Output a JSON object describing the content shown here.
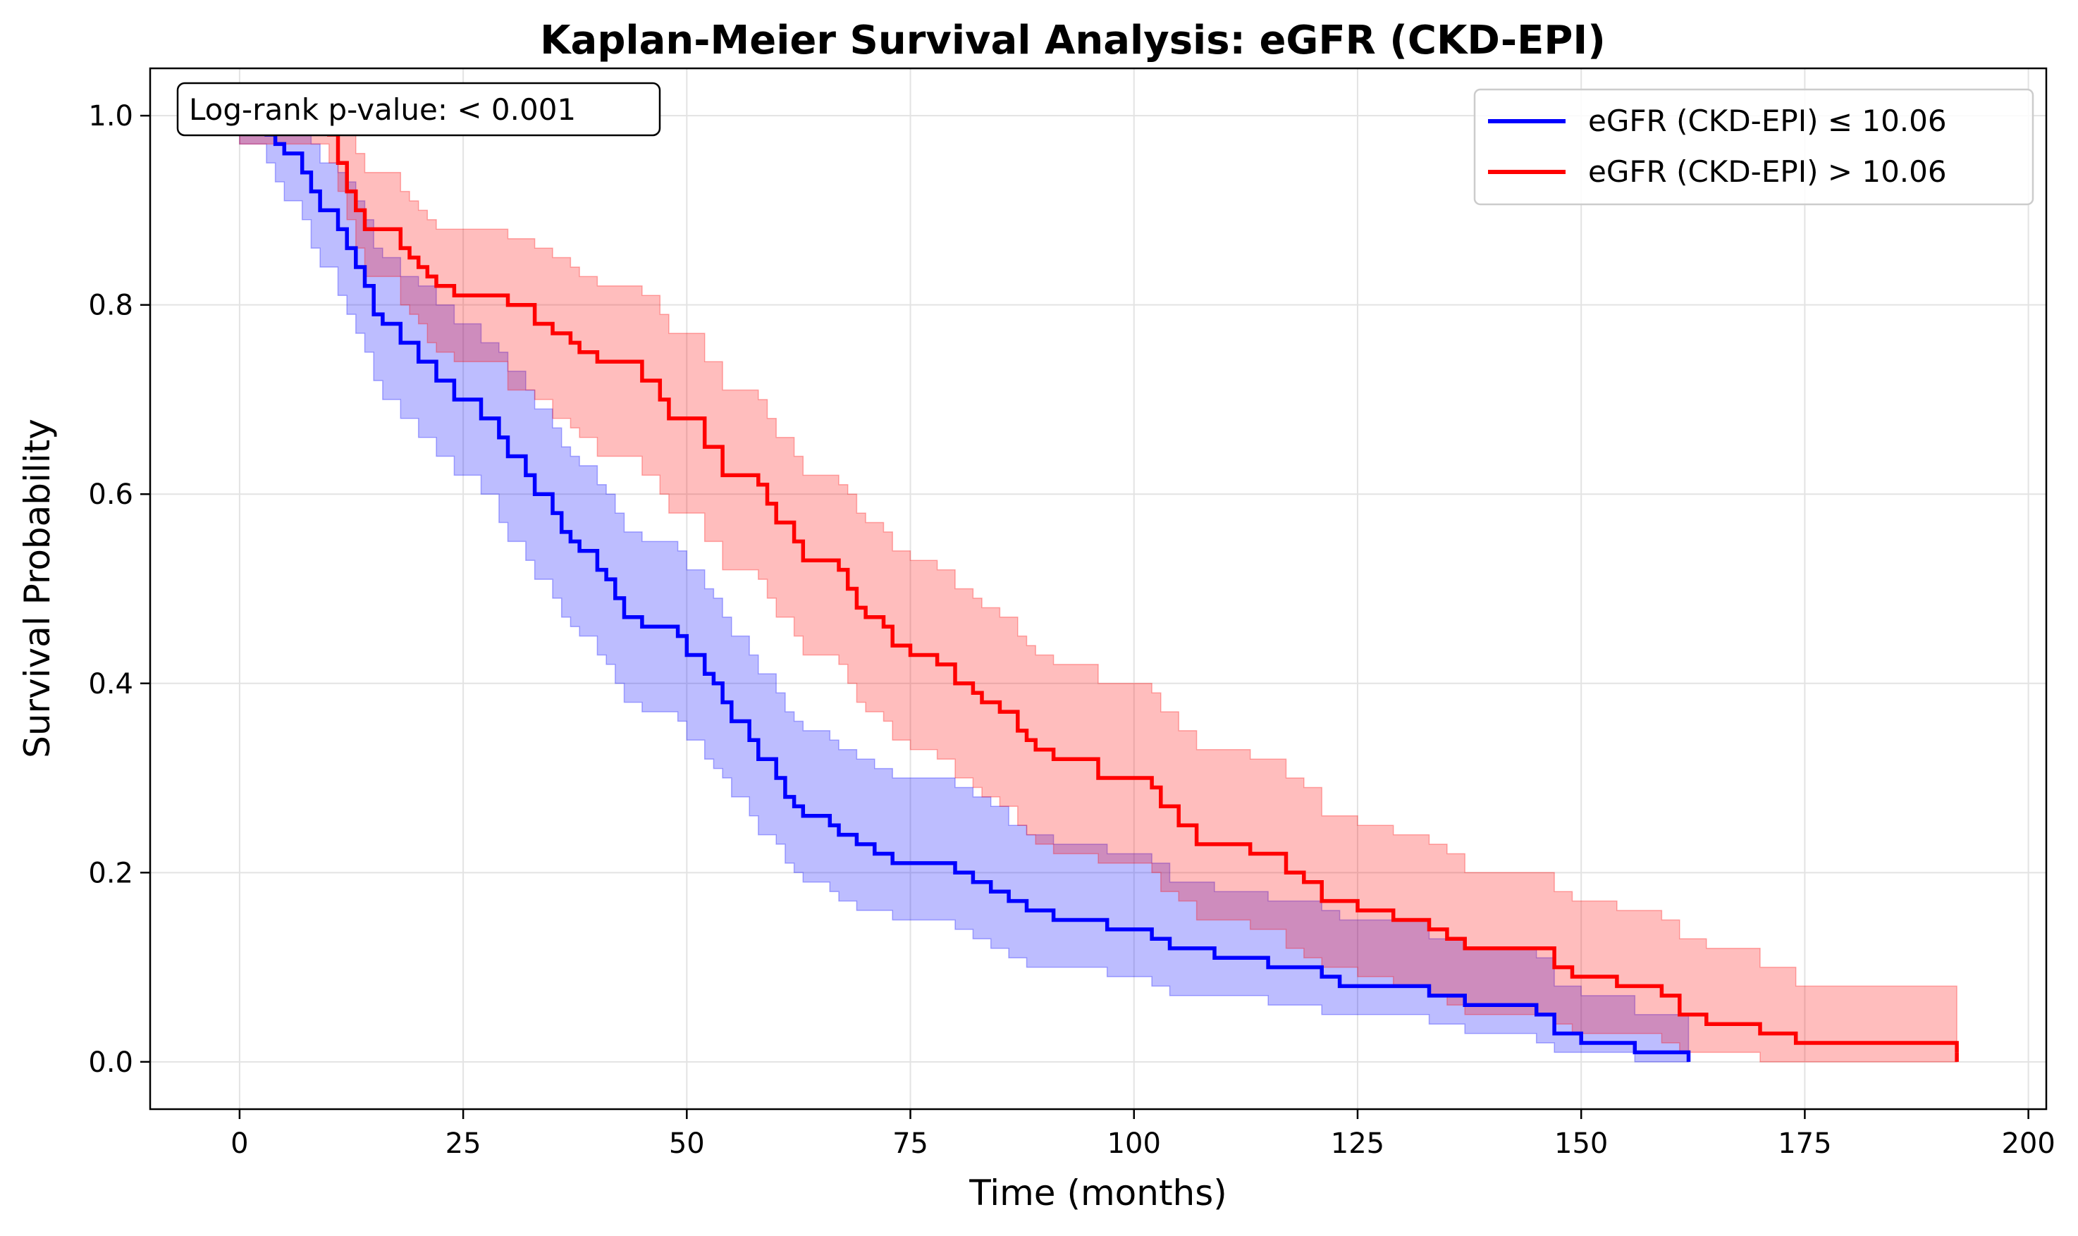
{
  "chart_data": {
    "type": "line",
    "subtype": "kaplan-meier step plot with confidence bands",
    "title": "Kaplan-Meier Survival Analysis: eGFR (CKD-EPI)",
    "xlabel": "Time (months)",
    "ylabel": "Survival Probability",
    "xlim": [
      -10,
      202
    ],
    "ylim": [
      -0.05,
      1.05
    ],
    "xticks": [
      0,
      25,
      50,
      75,
      100,
      125,
      150,
      175,
      200
    ],
    "yticks": [
      "0.0",
      "0.2",
      "0.4",
      "0.6",
      "0.8",
      "1.0"
    ],
    "grid": true,
    "legend_position": "top-right",
    "annotation": "Log-rank p-value: < 0.001",
    "series": [
      {
        "name": "eGFR (CKD-EPI) ≤ 10.06",
        "color": "#0000ff",
        "band_color": "#0000ff",
        "x": [
          0,
          3,
          4,
          5,
          7,
          8,
          9,
          11,
          12,
          13,
          14,
          15,
          16,
          18,
          20,
          22,
          24,
          27,
          29,
          30,
          32,
          33,
          35,
          36,
          37,
          38,
          40,
          41,
          42,
          43,
          45,
          49,
          50,
          52,
          53,
          54,
          55,
          57,
          58,
          60,
          61,
          62,
          63,
          66,
          67,
          69,
          71,
          73,
          80,
          82,
          84,
          86,
          88,
          91,
          97,
          102,
          104,
          109,
          115,
          121,
          123,
          133,
          137,
          145,
          147,
          150,
          156,
          162
        ],
        "y": [
          1.0,
          0.98,
          0.97,
          0.96,
          0.94,
          0.92,
          0.9,
          0.88,
          0.86,
          0.84,
          0.82,
          0.79,
          0.78,
          0.76,
          0.74,
          0.72,
          0.7,
          0.68,
          0.66,
          0.64,
          0.62,
          0.6,
          0.58,
          0.56,
          0.55,
          0.54,
          0.52,
          0.51,
          0.49,
          0.47,
          0.46,
          0.45,
          0.43,
          0.41,
          0.4,
          0.38,
          0.36,
          0.34,
          0.32,
          0.3,
          0.28,
          0.27,
          0.26,
          0.25,
          0.24,
          0.23,
          0.22,
          0.21,
          0.2,
          0.19,
          0.18,
          0.17,
          0.16,
          0.15,
          0.14,
          0.13,
          0.12,
          0.11,
          0.1,
          0.09,
          0.08,
          0.07,
          0.06,
          0.05,
          0.03,
          0.02,
          0.01,
          0.0
        ],
        "lower": [
          0.97,
          0.95,
          0.93,
          0.91,
          0.89,
          0.86,
          0.84,
          0.81,
          0.79,
          0.77,
          0.75,
          0.72,
          0.7,
          0.68,
          0.66,
          0.64,
          0.62,
          0.6,
          0.57,
          0.55,
          0.53,
          0.51,
          0.49,
          0.47,
          0.46,
          0.45,
          0.43,
          0.42,
          0.4,
          0.38,
          0.37,
          0.36,
          0.34,
          0.32,
          0.31,
          0.3,
          0.28,
          0.26,
          0.24,
          0.23,
          0.21,
          0.2,
          0.19,
          0.18,
          0.17,
          0.16,
          0.16,
          0.15,
          0.14,
          0.13,
          0.12,
          0.11,
          0.1,
          0.1,
          0.09,
          0.08,
          0.07,
          0.07,
          0.06,
          0.05,
          0.05,
          0.04,
          0.03,
          0.02,
          0.01,
          0.01,
          0.0,
          0.0
        ],
        "upper": [
          1.0,
          1.0,
          1.0,
          0.99,
          0.98,
          0.97,
          0.95,
          0.94,
          0.93,
          0.91,
          0.89,
          0.86,
          0.85,
          0.83,
          0.82,
          0.8,
          0.78,
          0.76,
          0.75,
          0.73,
          0.71,
          0.69,
          0.67,
          0.65,
          0.64,
          0.63,
          0.61,
          0.6,
          0.58,
          0.56,
          0.55,
          0.54,
          0.52,
          0.5,
          0.49,
          0.47,
          0.45,
          0.43,
          0.41,
          0.39,
          0.37,
          0.36,
          0.35,
          0.34,
          0.33,
          0.32,
          0.31,
          0.3,
          0.29,
          0.28,
          0.27,
          0.25,
          0.24,
          0.23,
          0.22,
          0.21,
          0.19,
          0.18,
          0.17,
          0.16,
          0.15,
          0.13,
          0.12,
          0.11,
          0.08,
          0.07,
          0.05,
          0.04
        ]
      },
      {
        "name": "eGFR (CKD-EPI) > 10.06",
        "color": "#ff0000",
        "band_color": "#ff0000",
        "x": [
          0,
          10,
          11,
          12,
          13,
          14,
          18,
          19,
          20,
          21,
          22,
          24,
          30,
          33,
          35,
          37,
          38,
          40,
          45,
          47,
          48,
          52,
          54,
          58,
          59,
          60,
          62,
          63,
          67,
          68,
          69,
          70,
          72,
          73,
          75,
          78,
          80,
          82,
          83,
          85,
          87,
          88,
          89,
          91,
          96,
          102,
          103,
          105,
          107,
          113,
          117,
          119,
          121,
          125,
          129,
          133,
          135,
          137,
          147,
          149,
          154,
          159,
          161,
          164,
          170,
          174,
          192
        ],
        "y": [
          1.0,
          0.98,
          0.95,
          0.92,
          0.9,
          0.88,
          0.86,
          0.85,
          0.84,
          0.83,
          0.82,
          0.81,
          0.8,
          0.78,
          0.77,
          0.76,
          0.75,
          0.74,
          0.72,
          0.7,
          0.68,
          0.65,
          0.62,
          0.61,
          0.59,
          0.57,
          0.55,
          0.53,
          0.52,
          0.5,
          0.48,
          0.47,
          0.46,
          0.44,
          0.43,
          0.42,
          0.4,
          0.39,
          0.38,
          0.37,
          0.35,
          0.34,
          0.33,
          0.32,
          0.3,
          0.29,
          0.27,
          0.25,
          0.23,
          0.22,
          0.2,
          0.19,
          0.17,
          0.16,
          0.15,
          0.14,
          0.13,
          0.12,
          0.1,
          0.09,
          0.08,
          0.07,
          0.05,
          0.04,
          0.03,
          0.02,
          0.01
        ],
        "lower": [
          0.97,
          0.95,
          0.92,
          0.89,
          0.86,
          0.83,
          0.8,
          0.79,
          0.78,
          0.76,
          0.75,
          0.74,
          0.71,
          0.7,
          0.68,
          0.67,
          0.66,
          0.64,
          0.62,
          0.6,
          0.58,
          0.55,
          0.52,
          0.51,
          0.49,
          0.47,
          0.45,
          0.43,
          0.42,
          0.4,
          0.38,
          0.37,
          0.36,
          0.34,
          0.33,
          0.32,
          0.3,
          0.29,
          0.28,
          0.27,
          0.25,
          0.24,
          0.23,
          0.22,
          0.21,
          0.2,
          0.18,
          0.17,
          0.15,
          0.14,
          0.12,
          0.11,
          0.1,
          0.09,
          0.08,
          0.07,
          0.06,
          0.05,
          0.04,
          0.03,
          0.03,
          0.02,
          0.01,
          0.01,
          0.0,
          0.0,
          0.0
        ],
        "upper": [
          1.0,
          1.0,
          1.0,
          0.98,
          0.96,
          0.94,
          0.92,
          0.91,
          0.9,
          0.89,
          0.88,
          0.88,
          0.87,
          0.86,
          0.85,
          0.84,
          0.83,
          0.82,
          0.81,
          0.79,
          0.77,
          0.74,
          0.71,
          0.7,
          0.68,
          0.66,
          0.64,
          0.62,
          0.61,
          0.6,
          0.58,
          0.57,
          0.56,
          0.54,
          0.53,
          0.52,
          0.5,
          0.49,
          0.48,
          0.47,
          0.45,
          0.44,
          0.43,
          0.42,
          0.4,
          0.39,
          0.37,
          0.35,
          0.33,
          0.32,
          0.3,
          0.29,
          0.26,
          0.25,
          0.24,
          0.23,
          0.22,
          0.2,
          0.18,
          0.17,
          0.16,
          0.15,
          0.13,
          0.12,
          0.1,
          0.08,
          0.05
        ]
      }
    ]
  }
}
